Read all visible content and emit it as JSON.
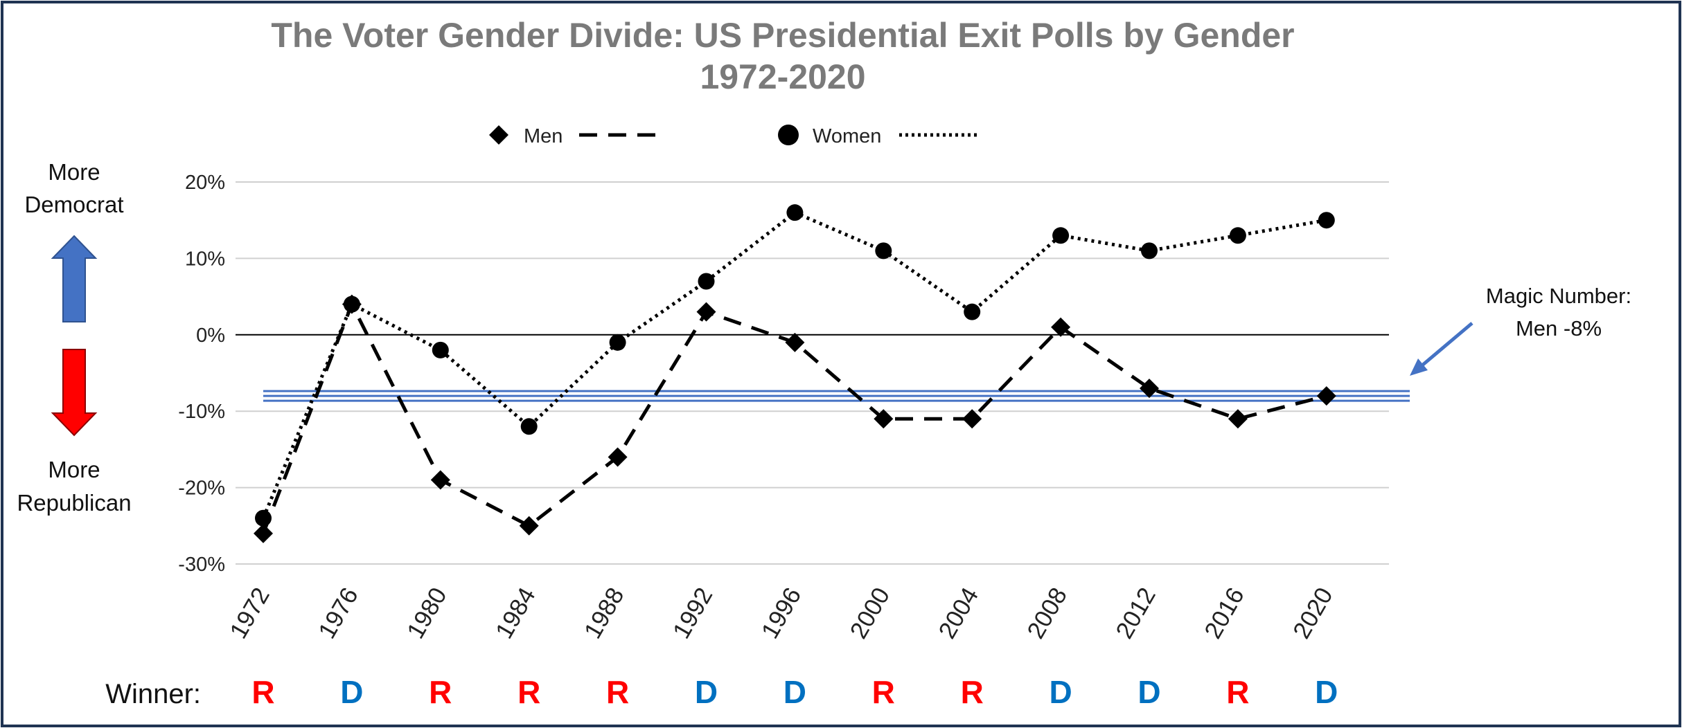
{
  "chart_data": {
    "type": "line",
    "title": "The Voter Gender Divide: US Presidential Exit Polls by Gender",
    "subtitle": "1972-2020",
    "categories": [
      "1972",
      "1976",
      "1980",
      "1984",
      "1988",
      "1992",
      "1996",
      "2000",
      "2004",
      "2008",
      "2012",
      "2016",
      "2020"
    ],
    "series": [
      {
        "name": "Men",
        "marker": "diamond",
        "line_style": "dashed",
        "color": "#000000",
        "values": [
          -26,
          4,
          -19,
          -25,
          -16,
          3,
          -1,
          -11,
          -11,
          1,
          -7,
          -11,
          -8
        ]
      },
      {
        "name": "Women",
        "marker": "circle",
        "line_style": "dotted",
        "color": "#000000",
        "values": [
          -24,
          4,
          -2,
          -12,
          -1,
          7,
          16,
          11,
          3,
          13,
          11,
          13,
          15
        ]
      }
    ],
    "ylim": [
      -30,
      20
    ],
    "yticks": [
      20,
      10,
      0,
      -10,
      -20,
      -30
    ],
    "ytick_labels": [
      "20%",
      "10%",
      "0%",
      "-10%",
      "-20%",
      "-30%"
    ],
    "xlabel": "",
    "ylabel": "",
    "grid": true,
    "legend_position": "top-center",
    "reference_line": {
      "value": -8,
      "color": "#4472c4",
      "label_line1": "Magic Number:",
      "label_line2": "Men -8%"
    },
    "zero_line": true
  },
  "side_labels": {
    "up_line1": "More",
    "up_line2": "Democrat",
    "down_line1": "More",
    "down_line2": "Republican",
    "up_arrow_color": "#4472c4",
    "down_arrow_color": "#ff0000"
  },
  "winners": {
    "label": "Winner:",
    "letters": [
      "R",
      "D",
      "R",
      "R",
      "R",
      "D",
      "D",
      "R",
      "R",
      "D",
      "D",
      "R",
      "D"
    ],
    "colors": {
      "R": "#ff0000",
      "D": "#0070c0"
    }
  }
}
